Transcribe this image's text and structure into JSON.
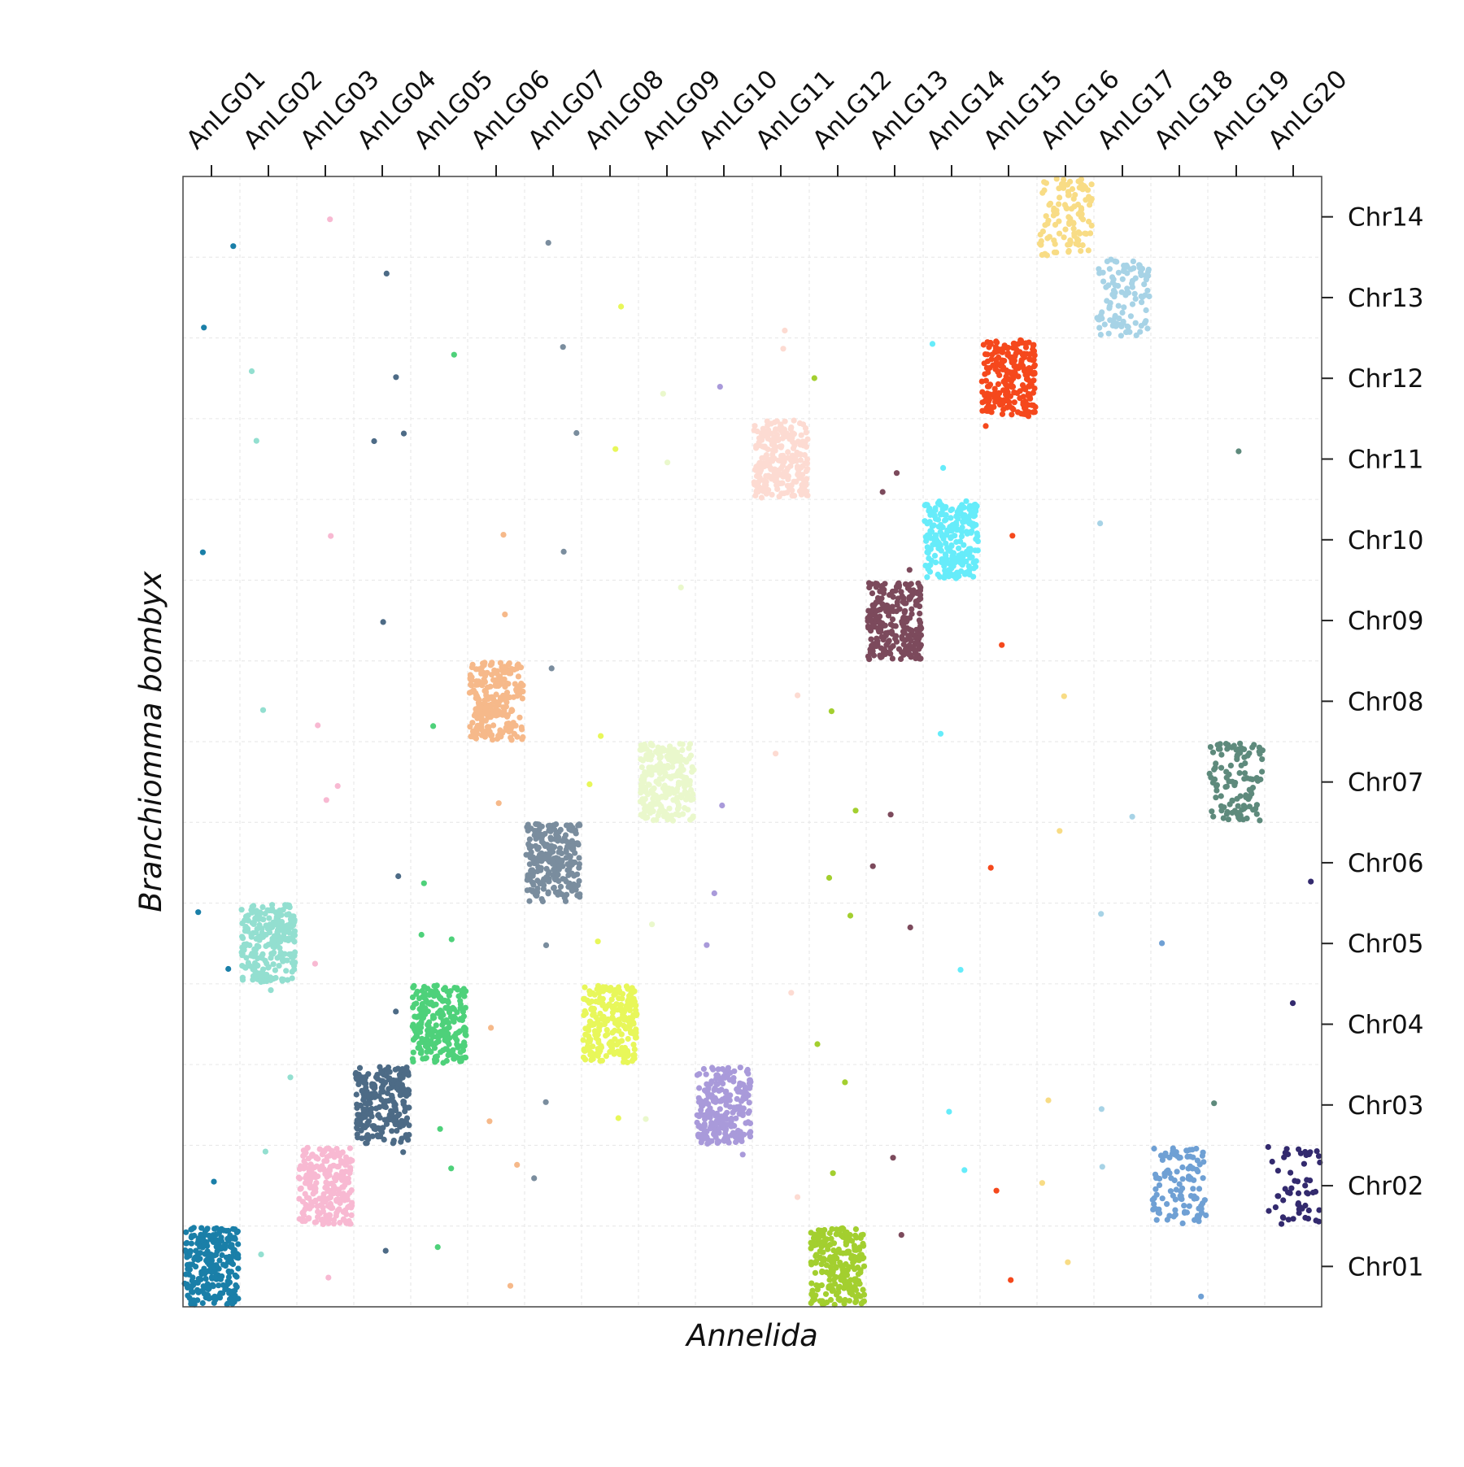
{
  "chart_data": {
    "type": "scatter",
    "title": "",
    "xlabel": "Annelida",
    "ylabel": "Branchiomma bombyx",
    "x_categories": [
      "AnLG01",
      "AnLG02",
      "AnLG03",
      "AnLG04",
      "AnLG05",
      "AnLG06",
      "AnLG07",
      "AnLG08",
      "AnLG09",
      "AnLG10",
      "AnLG11",
      "AnLG12",
      "AnLG13",
      "AnLG14",
      "AnLG15",
      "AnLG16",
      "AnLG17",
      "AnLG18",
      "AnLG19",
      "AnLG20"
    ],
    "y_categories": [
      "Chr01",
      "Chr02",
      "Chr03",
      "Chr04",
      "Chr05",
      "Chr06",
      "Chr07",
      "Chr08",
      "Chr09",
      "Chr10",
      "Chr11",
      "Chr12",
      "Chr13",
      "Chr14"
    ],
    "x_ticks_position": "top",
    "y_ticks_position": "right",
    "grid": true,
    "legend": "none",
    "colors": {
      "AnLG01": "#1a7fa8",
      "AnLG02": "#93dfd0",
      "AnLG03": "#f8b9d2",
      "AnLG04": "#4d6b86",
      "AnLG05": "#4ed17a",
      "AnLG06": "#f6b98a",
      "AnLG07": "#7a8d9e",
      "AnLG08": "#e8f75a",
      "AnLG09": "#eaf8cc",
      "AnLG10": "#a99ada",
      "AnLG11": "#fddbd2",
      "AnLG12": "#a3cf2f",
      "AnLG13": "#7c4a5c",
      "AnLG14": "#66ecfa",
      "AnLG15": "#f5481c",
      "AnLG16": "#f8dc85",
      "AnLG17": "#a7d3e6",
      "AnLG18": "#6fa0d4",
      "AnLG19": "#5e8a7c",
      "AnLG20": "#332a6e"
    },
    "blocks": [
      {
        "x": "AnLG01",
        "y": "Chr01",
        "density": "high"
      },
      {
        "x": "AnLG02",
        "y": "Chr05",
        "density": "high"
      },
      {
        "x": "AnLG03",
        "y": "Chr02",
        "density": "high"
      },
      {
        "x": "AnLG04",
        "y": "Chr03",
        "density": "high"
      },
      {
        "x": "AnLG05",
        "y": "Chr04",
        "density": "high"
      },
      {
        "x": "AnLG06",
        "y": "Chr08",
        "density": "high"
      },
      {
        "x": "AnLG07",
        "y": "Chr06",
        "density": "high"
      },
      {
        "x": "AnLG08",
        "y": "Chr04",
        "density": "high"
      },
      {
        "x": "AnLG09",
        "y": "Chr07",
        "density": "high"
      },
      {
        "x": "AnLG10",
        "y": "Chr03",
        "density": "high"
      },
      {
        "x": "AnLG11",
        "y": "Chr11",
        "density": "high"
      },
      {
        "x": "AnLG12",
        "y": "Chr01",
        "density": "high"
      },
      {
        "x": "AnLG13",
        "y": "Chr09",
        "density": "high"
      },
      {
        "x": "AnLG14",
        "y": "Chr10",
        "density": "high"
      },
      {
        "x": "AnLG15",
        "y": "Chr12",
        "density": "high"
      },
      {
        "x": "AnLG16",
        "y": "Chr14",
        "density": "medium"
      },
      {
        "x": "AnLG17",
        "y": "Chr13",
        "density": "medium"
      },
      {
        "x": "AnLG18",
        "y": "Chr02",
        "density": "medium"
      },
      {
        "x": "AnLG19",
        "y": "Chr07",
        "density": "medium"
      },
      {
        "x": "AnLG20",
        "y": "Chr02",
        "density": "low"
      }
    ],
    "scatter_points": [
      {
        "x": "AnLG01",
        "y": "Chr14"
      },
      {
        "x": "AnLG01",
        "y": "Chr13"
      },
      {
        "x": "AnLG01",
        "y": "Chr10"
      },
      {
        "x": "AnLG01",
        "y": "Chr05"
      },
      {
        "x": "AnLG01",
        "y": "Chr02"
      },
      {
        "x": "AnLG01",
        "y": "Chr05"
      },
      {
        "x": "AnLG02",
        "y": "Chr12"
      },
      {
        "x": "AnLG02",
        "y": "Chr11"
      },
      {
        "x": "AnLG02",
        "y": "Chr08"
      },
      {
        "x": "AnLG02",
        "y": "Chr04"
      },
      {
        "x": "AnLG02",
        "y": "Chr03"
      },
      {
        "x": "AnLG02",
        "y": "Chr02"
      },
      {
        "x": "AnLG02",
        "y": "Chr01"
      },
      {
        "x": "AnLG03",
        "y": "Chr14"
      },
      {
        "x": "AnLG03",
        "y": "Chr10"
      },
      {
        "x": "AnLG03",
        "y": "Chr08"
      },
      {
        "x": "AnLG03",
        "y": "Chr07"
      },
      {
        "x": "AnLG03",
        "y": "Chr05"
      },
      {
        "x": "AnLG03",
        "y": "Chr01"
      },
      {
        "x": "AnLG03",
        "y": "Chr07"
      },
      {
        "x": "AnLG04",
        "y": "Chr13"
      },
      {
        "x": "AnLG04",
        "y": "Chr12"
      },
      {
        "x": "AnLG04",
        "y": "Chr11"
      },
      {
        "x": "AnLG04",
        "y": "Chr09"
      },
      {
        "x": "AnLG04",
        "y": "Chr06"
      },
      {
        "x": "AnLG04",
        "y": "Chr04"
      },
      {
        "x": "AnLG04",
        "y": "Chr02"
      },
      {
        "x": "AnLG04",
        "y": "Chr01"
      },
      {
        "x": "AnLG04",
        "y": "Chr11"
      },
      {
        "x": "AnLG05",
        "y": "Chr12"
      },
      {
        "x": "AnLG05",
        "y": "Chr08"
      },
      {
        "x": "AnLG05",
        "y": "Chr06"
      },
      {
        "x": "AnLG05",
        "y": "Chr05"
      },
      {
        "x": "AnLG05",
        "y": "Chr03"
      },
      {
        "x": "AnLG05",
        "y": "Chr02"
      },
      {
        "x": "AnLG05",
        "y": "Chr01"
      },
      {
        "x": "AnLG05",
        "y": "Chr05"
      },
      {
        "x": "AnLG06",
        "y": "Chr10"
      },
      {
        "x": "AnLG06",
        "y": "Chr07"
      },
      {
        "x": "AnLG06",
        "y": "Chr04"
      },
      {
        "x": "AnLG06",
        "y": "Chr03"
      },
      {
        "x": "AnLG06",
        "y": "Chr02"
      },
      {
        "x": "AnLG06",
        "y": "Chr01"
      },
      {
        "x": "AnLG06",
        "y": "Chr09"
      },
      {
        "x": "AnLG07",
        "y": "Chr14"
      },
      {
        "x": "AnLG07",
        "y": "Chr12"
      },
      {
        "x": "AnLG07",
        "y": "Chr11"
      },
      {
        "x": "AnLG07",
        "y": "Chr10"
      },
      {
        "x": "AnLG07",
        "y": "Chr08"
      },
      {
        "x": "AnLG07",
        "y": "Chr05"
      },
      {
        "x": "AnLG07",
        "y": "Chr03"
      },
      {
        "x": "AnLG07",
        "y": "Chr02"
      },
      {
        "x": "AnLG08",
        "y": "Chr13"
      },
      {
        "x": "AnLG08",
        "y": "Chr11"
      },
      {
        "x": "AnLG08",
        "y": "Chr08"
      },
      {
        "x": "AnLG08",
        "y": "Chr07"
      },
      {
        "x": "AnLG08",
        "y": "Chr05"
      },
      {
        "x": "AnLG08",
        "y": "Chr03"
      },
      {
        "x": "AnLG09",
        "y": "Chr12"
      },
      {
        "x": "AnLG09",
        "y": "Chr09"
      },
      {
        "x": "AnLG09",
        "y": "Chr05"
      },
      {
        "x": "AnLG09",
        "y": "Chr03"
      },
      {
        "x": "AnLG09",
        "y": "Chr11"
      },
      {
        "x": "AnLG10",
        "y": "Chr12"
      },
      {
        "x": "AnLG10",
        "y": "Chr07"
      },
      {
        "x": "AnLG10",
        "y": "Chr06"
      },
      {
        "x": "AnLG10",
        "y": "Chr05"
      },
      {
        "x": "AnLG10",
        "y": "Chr02"
      },
      {
        "x": "AnLG11",
        "y": "Chr13"
      },
      {
        "x": "AnLG11",
        "y": "Chr12"
      },
      {
        "x": "AnLG11",
        "y": "Chr07"
      },
      {
        "x": "AnLG11",
        "y": "Chr04"
      },
      {
        "x": "AnLG11",
        "y": "Chr02"
      },
      {
        "x": "AnLG11",
        "y": "Chr08"
      },
      {
        "x": "AnLG12",
        "y": "Chr12"
      },
      {
        "x": "AnLG12",
        "y": "Chr08"
      },
      {
        "x": "AnLG12",
        "y": "Chr07"
      },
      {
        "x": "AnLG12",
        "y": "Chr06"
      },
      {
        "x": "AnLG12",
        "y": "Chr05"
      },
      {
        "x": "AnLG12",
        "y": "Chr03"
      },
      {
        "x": "AnLG12",
        "y": "Chr02"
      },
      {
        "x": "AnLG12",
        "y": "Chr04"
      },
      {
        "x": "AnLG13",
        "y": "Chr11"
      },
      {
        "x": "AnLG13",
        "y": "Chr10"
      },
      {
        "x": "AnLG13",
        "y": "Chr07"
      },
      {
        "x": "AnLG13",
        "y": "Chr06"
      },
      {
        "x": "AnLG13",
        "y": "Chr05"
      },
      {
        "x": "AnLG13",
        "y": "Chr02"
      },
      {
        "x": "AnLG13",
        "y": "Chr01"
      },
      {
        "x": "AnLG13",
        "y": "Chr11"
      },
      {
        "x": "AnLG14",
        "y": "Chr12"
      },
      {
        "x": "AnLG14",
        "y": "Chr11"
      },
      {
        "x": "AnLG14",
        "y": "Chr08"
      },
      {
        "x": "AnLG14",
        "y": "Chr05"
      },
      {
        "x": "AnLG14",
        "y": "Chr03"
      },
      {
        "x": "AnLG14",
        "y": "Chr02"
      },
      {
        "x": "AnLG15",
        "y": "Chr11"
      },
      {
        "x": "AnLG15",
        "y": "Chr10"
      },
      {
        "x": "AnLG15",
        "y": "Chr06"
      },
      {
        "x": "AnLG15",
        "y": "Chr02"
      },
      {
        "x": "AnLG15",
        "y": "Chr01"
      },
      {
        "x": "AnLG15",
        "y": "Chr09"
      },
      {
        "x": "AnLG16",
        "y": "Chr08"
      },
      {
        "x": "AnLG16",
        "y": "Chr06"
      },
      {
        "x": "AnLG16",
        "y": "Chr03"
      },
      {
        "x": "AnLG16",
        "y": "Chr02"
      },
      {
        "x": "AnLG16",
        "y": "Chr01"
      },
      {
        "x": "AnLG17",
        "y": "Chr10"
      },
      {
        "x": "AnLG17",
        "y": "Chr07"
      },
      {
        "x": "AnLG17",
        "y": "Chr05"
      },
      {
        "x": "AnLG17",
        "y": "Chr03"
      },
      {
        "x": "AnLG17",
        "y": "Chr02"
      },
      {
        "x": "AnLG18",
        "y": "Chr05"
      },
      {
        "x": "AnLG18",
        "y": "Chr01"
      },
      {
        "x": "AnLG19",
        "y": "Chr11"
      },
      {
        "x": "AnLG19",
        "y": "Chr03"
      },
      {
        "x": "AnLG20",
        "y": "Chr06"
      },
      {
        "x": "AnLG20",
        "y": "Chr04"
      }
    ]
  }
}
